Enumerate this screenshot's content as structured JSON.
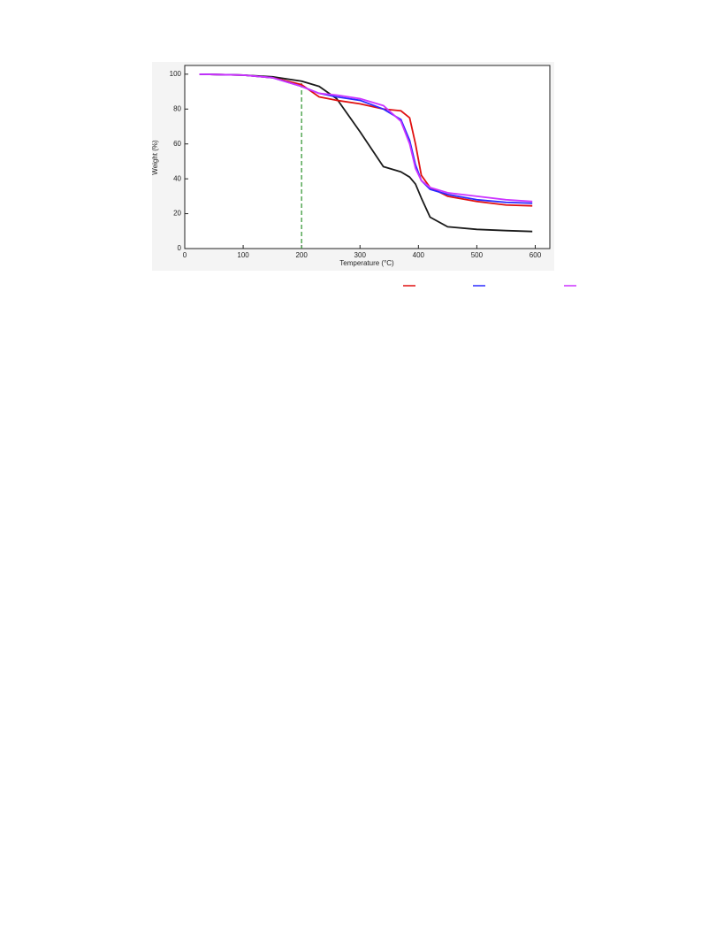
{
  "chart_data": {
    "type": "line",
    "xlabel": "Temperature (°C)",
    "ylabel": "Weight (%)",
    "x": [
      25,
      100,
      150,
      200,
      230,
      260,
      300,
      340,
      370,
      385,
      395,
      405,
      420,
      450,
      500,
      550,
      595
    ],
    "series": [
      {
        "color": "#1a1a1a",
        "values": [
          100,
          99.5,
          98.5,
          96,
          93,
          86,
          67,
          47,
          44,
          41,
          37,
          29,
          18,
          12.5,
          11,
          10.3,
          9.8
        ]
      },
      {
        "color": "#e01010",
        "values": [
          100,
          99.5,
          98,
          94,
          87,
          85,
          83,
          80,
          79,
          75,
          60,
          42,
          35,
          30,
          27,
          25,
          24.5
        ]
      },
      {
        "color": "#2a2aff",
        "values": [
          100,
          99.5,
          98,
          93,
          89,
          87,
          85,
          80,
          74,
          62,
          48,
          39,
          34,
          31,
          28,
          26.5,
          26
        ]
      },
      {
        "color": "#cc33ff",
        "values": [
          100,
          99.5,
          98,
          93,
          89,
          88,
          86,
          82,
          73,
          60,
          46,
          39,
          35,
          32,
          30,
          28,
          27
        ]
      }
    ],
    "vline": {
      "x": 200,
      "color": "#3a9a3a"
    },
    "xlim": [
      0,
      625
    ],
    "ylim": [
      0,
      105
    ],
    "xticks": [
      0,
      100,
      200,
      300,
      400,
      500,
      600
    ],
    "yticks": [
      0,
      20,
      40,
      60,
      80,
      100
    ]
  }
}
